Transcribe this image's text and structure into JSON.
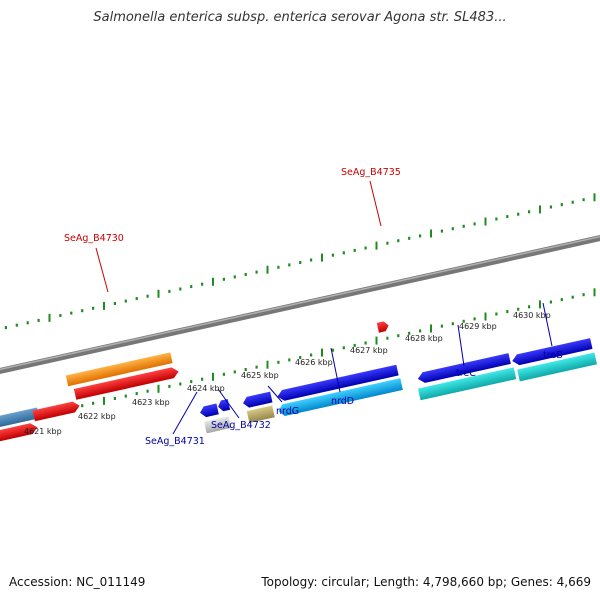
{
  "title": "Salmonella enterica subsp. enterica serovar Agona str. SL483...",
  "footer": {
    "accession": "Accession: NC_011149",
    "topology": "Topology: circular; Length: 4,798,660 bp; Genes: 4,669"
  },
  "colors": {
    "backbone": "#888888",
    "tick": "#1e8c1e",
    "label_red": "#cc0000",
    "label_blue": "#0000aa"
  },
  "scale_labels": [
    "4621 kbp",
    "4622 kbp",
    "4623 kbp",
    "4624 kbp",
    "4625 kbp",
    "4626 kbp",
    "4627 kbp",
    "4628 kbp",
    "4629 kbp",
    "4630 kbp"
  ],
  "gene_labels": [
    {
      "text": "SeAg_B4730",
      "color": "label_red"
    },
    {
      "text": "SeAg_B4735",
      "color": "label_red"
    },
    {
      "text": "SeAg_B4731",
      "color": "label_blue"
    },
    {
      "text": "SeAg_B4732",
      "color": "label_blue"
    },
    {
      "text": "nrdG",
      "color": "label_blue"
    },
    {
      "text": "nrdD",
      "color": "label_blue"
    },
    {
      "text": "treC",
      "color": "label_blue"
    },
    {
      "text": "treB",
      "color": "label_blue"
    }
  ]
}
